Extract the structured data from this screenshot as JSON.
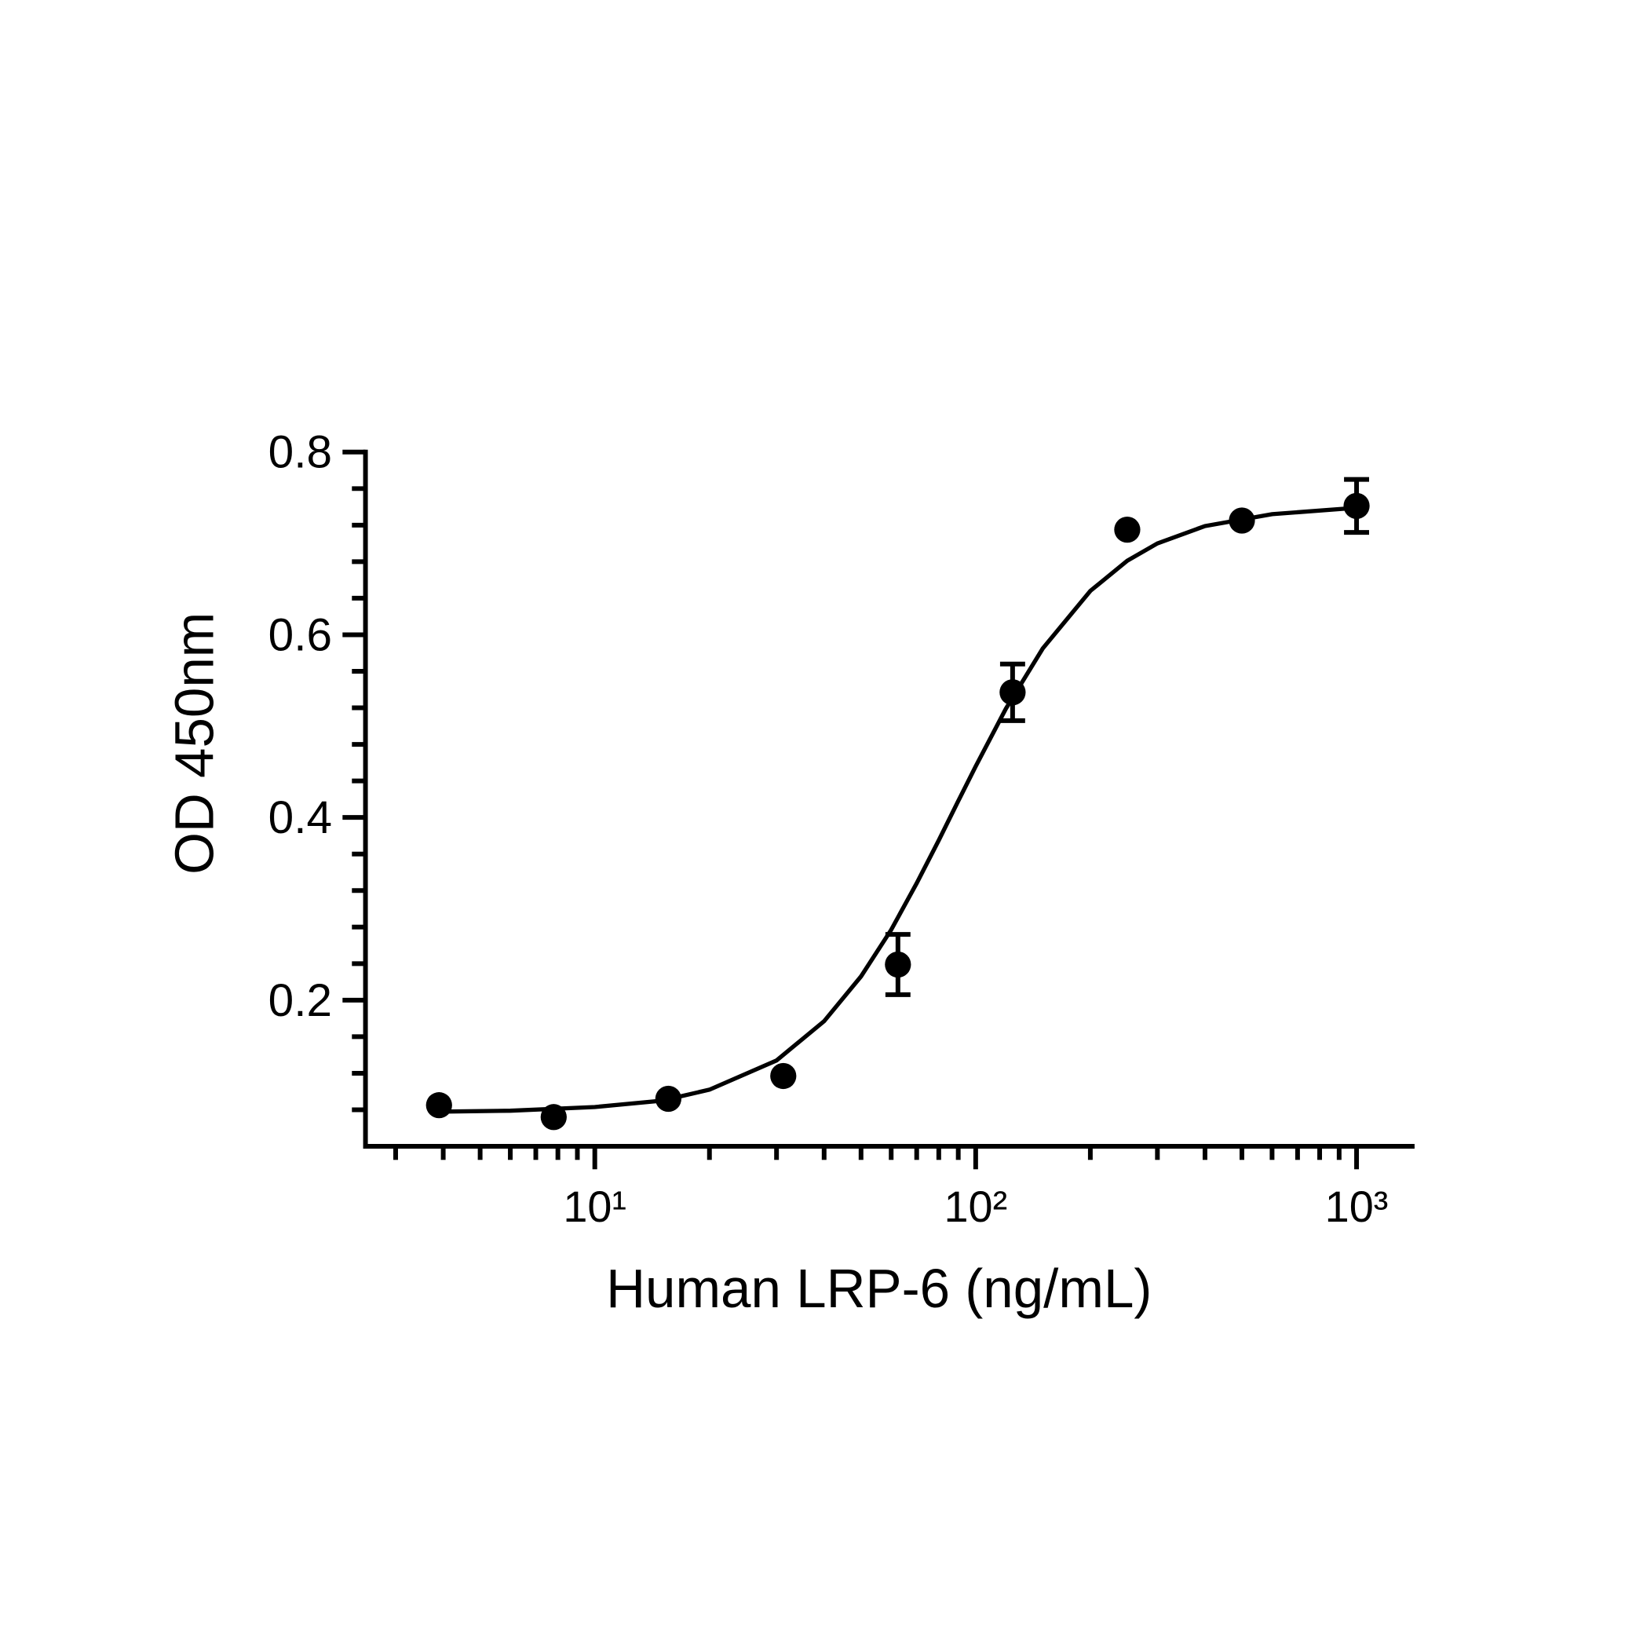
{
  "chart_data": {
    "type": "scatter",
    "xlabel": "Human LRP-6 (ng/mL)",
    "ylabel": "OD 450nm",
    "log_x": true,
    "xlim": [
      2.5,
      1420
    ],
    "ylim": [
      0.04,
      0.8
    ],
    "xticks": [
      {
        "value": 10,
        "label": "10¹"
      },
      {
        "value": 100,
        "label": "10²"
      },
      {
        "value": 1000,
        "label": "10³"
      }
    ],
    "xminorticks": [
      3,
      4,
      5,
      6,
      7,
      8,
      9,
      20,
      30,
      40,
      50,
      60,
      70,
      80,
      90,
      200,
      300,
      400,
      500,
      600,
      700,
      800,
      900
    ],
    "yticks": [
      0.2,
      0.4,
      0.6,
      0.8
    ],
    "yminorticks": [
      0.08,
      0.12,
      0.16,
      0.24,
      0.28,
      0.32,
      0.36,
      0.44,
      0.48,
      0.52,
      0.56,
      0.64,
      0.68,
      0.72,
      0.76
    ],
    "color": "#000000",
    "x": [
      3.9,
      7.8,
      15.6,
      31.25,
      62.5,
      125,
      250,
      500,
      1000
    ],
    "values": [
      0.085,
      0.072,
      0.092,
      0.117,
      0.239,
      0.537,
      0.715,
      0.725,
      0.741
    ],
    "errors": [
      null,
      null,
      null,
      null,
      0.033,
      0.031,
      null,
      null,
      0.029
    ],
    "curve": {
      "x": [
        4,
        6,
        10,
        15,
        20,
        30,
        40,
        50,
        60,
        70,
        80,
        90,
        100,
        120,
        150,
        200,
        250,
        300,
        400,
        600,
        1000
      ],
      "values": [
        0.078,
        0.079,
        0.083,
        0.09,
        0.102,
        0.134,
        0.177,
        0.226,
        0.277,
        0.328,
        0.375,
        0.418,
        0.456,
        0.519,
        0.585,
        0.648,
        0.681,
        0.7,
        0.719,
        0.732,
        0.739
      ]
    }
  }
}
